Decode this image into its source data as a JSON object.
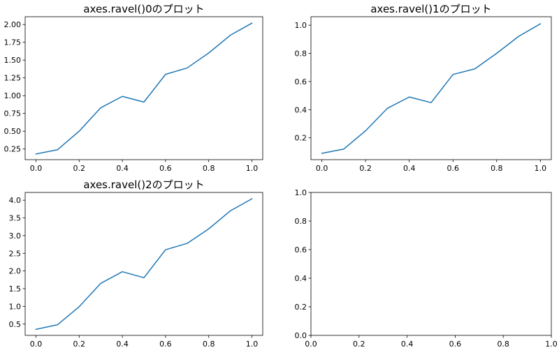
{
  "chart_data": [
    {
      "type": "line",
      "title": "axes.ravel()0のプロット",
      "xlabel": "",
      "ylabel": "",
      "xlim": [
        -0.05,
        1.05
      ],
      "ylim": [
        0.1,
        2.11
      ],
      "xticks": [
        0.0,
        0.2,
        0.4,
        0.6,
        0.8,
        1.0
      ],
      "xtick_labels": [
        "0.0",
        "0.2",
        "0.4",
        "0.6",
        "0.8",
        "1.0"
      ],
      "yticks": [
        0.25,
        0.5,
        0.75,
        1.0,
        1.25,
        1.5,
        1.75,
        2.0
      ],
      "ytick_labels": [
        "0.25",
        "0.50",
        "0.75",
        "1.00",
        "1.25",
        "1.50",
        "1.75",
        "2.00"
      ],
      "grid": false,
      "series": [
        {
          "color": "#1f77b4",
          "x": [
            0.0,
            0.1,
            0.2,
            0.3,
            0.4,
            0.5,
            0.6,
            0.7,
            0.8,
            0.9,
            1.0
          ],
          "y": [
            0.18,
            0.24,
            0.5,
            0.83,
            0.99,
            0.91,
            1.3,
            1.39,
            1.6,
            1.85,
            2.02
          ]
        }
      ]
    },
    {
      "type": "line",
      "title": "axes.ravel()1のプロット",
      "xlabel": "",
      "ylabel": "",
      "xlim": [
        -0.05,
        1.05
      ],
      "ylim": [
        0.045,
        1.06
      ],
      "xticks": [
        0.0,
        0.2,
        0.4,
        0.6,
        0.8,
        1.0
      ],
      "xtick_labels": [
        "0.0",
        "0.2",
        "0.4",
        "0.6",
        "0.8",
        "1.0"
      ],
      "yticks": [
        0.2,
        0.4,
        0.6,
        0.8,
        1.0
      ],
      "ytick_labels": [
        "0.2",
        "0.4",
        "0.6",
        "0.8",
        "1.0"
      ],
      "grid": false,
      "series": [
        {
          "color": "#1f77b4",
          "x": [
            0.0,
            0.1,
            0.2,
            0.3,
            0.4,
            0.5,
            0.6,
            0.7,
            0.8,
            0.9,
            1.0
          ],
          "y": [
            0.09,
            0.12,
            0.25,
            0.41,
            0.49,
            0.45,
            0.65,
            0.69,
            0.8,
            0.92,
            1.01
          ]
        }
      ]
    },
    {
      "type": "line",
      "title": "axes.ravel()2のプロット",
      "xlabel": "",
      "ylabel": "",
      "xlim": [
        -0.05,
        1.05
      ],
      "ylim": [
        0.18,
        4.22
      ],
      "xticks": [
        0.0,
        0.2,
        0.4,
        0.6,
        0.8,
        1.0
      ],
      "xtick_labels": [
        "0.0",
        "0.2",
        "0.4",
        "0.6",
        "0.8",
        "1.0"
      ],
      "yticks": [
        0.5,
        1.0,
        1.5,
        2.0,
        2.5,
        3.0,
        3.5,
        4.0
      ],
      "ytick_labels": [
        "0.5",
        "1.0",
        "1.5",
        "2.0",
        "2.5",
        "3.0",
        "3.5",
        "4.0"
      ],
      "grid": false,
      "series": [
        {
          "color": "#1f77b4",
          "x": [
            0.0,
            0.1,
            0.2,
            0.3,
            0.4,
            0.5,
            0.6,
            0.7,
            0.8,
            0.9,
            1.0
          ],
          "y": [
            0.35,
            0.48,
            0.99,
            1.65,
            1.98,
            1.81,
            2.6,
            2.78,
            3.19,
            3.7,
            4.04
          ]
        }
      ]
    },
    {
      "type": "line",
      "title": "",
      "xlabel": "",
      "ylabel": "",
      "xlim": [
        0.0,
        1.0
      ],
      "ylim": [
        0.0,
        1.0
      ],
      "xticks": [
        0.0,
        0.2,
        0.4,
        0.6,
        0.8,
        1.0
      ],
      "xtick_labels": [
        "0.0",
        "0.2",
        "0.4",
        "0.6",
        "0.8",
        "1.0"
      ],
      "yticks": [
        0.0,
        0.2,
        0.4,
        0.6,
        0.8,
        1.0
      ],
      "ytick_labels": [
        "0.0",
        "0.2",
        "0.4",
        "0.6",
        "0.8",
        "1.0"
      ],
      "grid": false,
      "series": []
    }
  ]
}
